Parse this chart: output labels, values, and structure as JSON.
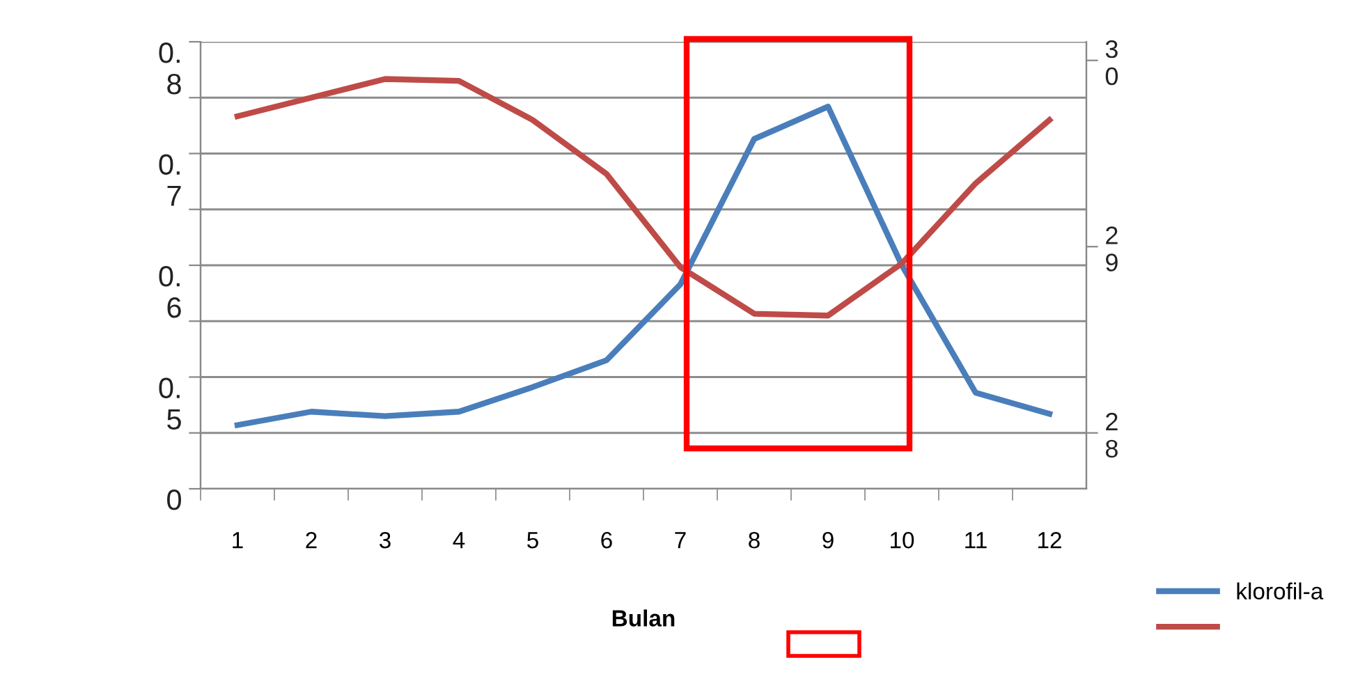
{
  "chart_data": {
    "type": "line",
    "xlabel": "Bulan",
    "categories": [
      "1",
      "2",
      "3",
      "4",
      "5",
      "6",
      "7",
      "8",
      "9",
      "10",
      "11",
      "12"
    ],
    "series": [
      {
        "name": "klorofil-a",
        "color": "#4a7ebb",
        "values": [
          0.457,
          0.469,
          0.465,
          0.469,
          0.491,
          0.515,
          0.583,
          0.713,
          0.742,
          0.6,
          0.486,
          0.467
        ]
      },
      {
        "color": "#be4b48",
        "axis": "y2",
        "values": [
          29.7,
          29.8,
          29.9,
          29.89,
          29.68,
          29.39,
          28.89,
          28.64,
          28.63,
          28.91,
          29.34,
          29.68
        ]
      }
    ],
    "ylim": [
      0.4,
      0.8
    ],
    "yticks": [
      {
        "value": 0.4,
        "label": "0"
      },
      {
        "value": 0.45,
        "label": null
      },
      0.5,
      {
        "value": 0.55,
        "label": null
      },
      0.6,
      {
        "value": 0.65,
        "label": null
      },
      0.7,
      {
        "value": 0.75,
        "label": null
      },
      0.8
    ],
    "y2lim": [
      27.7,
      30.1
    ],
    "y2ticks": [
      28,
      29,
      30
    ],
    "grid": "y",
    "legend": "bottom right",
    "marker": "none",
    "line_style": "solid"
  }
}
